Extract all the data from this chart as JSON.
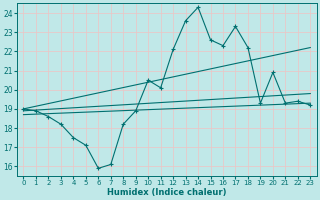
{
  "xlabel": "Humidex (Indice chaleur)",
  "bg_color": "#c0e8e8",
  "grid_color": "#e8c8c8",
  "line_color": "#007070",
  "xlim": [
    -0.5,
    23.5
  ],
  "ylim": [
    15.5,
    24.5
  ],
  "xticks": [
    0,
    1,
    2,
    3,
    4,
    5,
    6,
    7,
    8,
    9,
    10,
    11,
    12,
    13,
    14,
    15,
    16,
    17,
    18,
    19,
    20,
    21,
    22,
    23
  ],
  "yticks": [
    16,
    17,
    18,
    19,
    20,
    21,
    22,
    23,
    24
  ],
  "line1_x": [
    0,
    1,
    2,
    3,
    4,
    5,
    6,
    7,
    8,
    9,
    10,
    11,
    12,
    13,
    14,
    15,
    16,
    17,
    18,
    19,
    20,
    21,
    22,
    23
  ],
  "line1_y": [
    19.0,
    18.9,
    18.6,
    18.2,
    17.5,
    17.1,
    15.9,
    16.1,
    18.2,
    18.9,
    20.5,
    20.1,
    22.1,
    23.6,
    24.3,
    22.6,
    22.3,
    23.3,
    22.2,
    19.3,
    20.9,
    19.3,
    19.4,
    19.2
  ],
  "line2_x": [
    0,
    23
  ],
  "line2_y": [
    19.0,
    22.2
  ],
  "line3_x": [
    0,
    23
  ],
  "line3_y": [
    18.9,
    19.8
  ],
  "line4_x": [
    0,
    23
  ],
  "line4_y": [
    18.7,
    19.3
  ]
}
